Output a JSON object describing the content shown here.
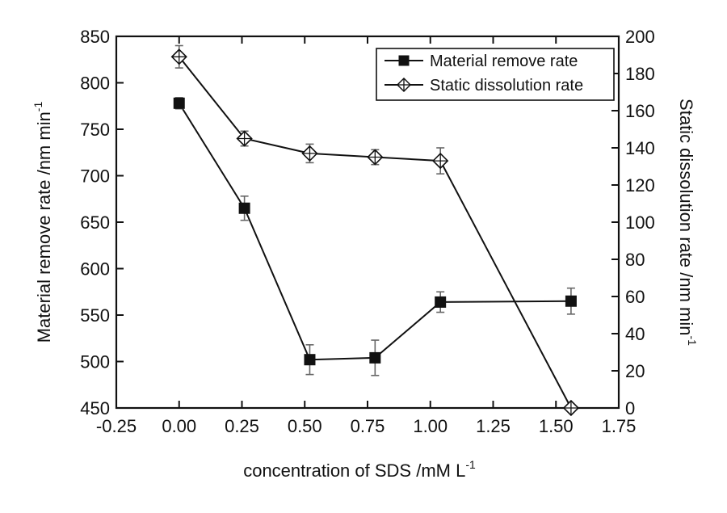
{
  "chart_data": {
    "type": "line",
    "xlabel": "concentration of SDS /mM L",
    "xlabel_sup": "-1",
    "ylabel_left": "Material remove rate /nm min",
    "ylabel_left_sup": "-1",
    "ylabel_right": "Static dissolution rate /nm min",
    "ylabel_right_sup": "-1",
    "xlim": [
      -0.25,
      1.75
    ],
    "ylim_left": [
      450,
      850
    ],
    "ylim_right": [
      0,
      200
    ],
    "x_ticks": [
      "-0.25",
      "0.00",
      "0.25",
      "0.50",
      "0.75",
      "1.00",
      "1.25",
      "1.50",
      "1.75"
    ],
    "y_left_ticks": [
      "450",
      "500",
      "550",
      "600",
      "650",
      "700",
      "750",
      "800",
      "850"
    ],
    "y_right_ticks": [
      "0",
      "20",
      "40",
      "60",
      "80",
      "100",
      "120",
      "140",
      "160",
      "180",
      "200"
    ],
    "grid": false,
    "legend_position": "top-right",
    "series": [
      {
        "name": "Material remove rate",
        "axis": "left",
        "marker": "filled-square",
        "color": "#111111",
        "x": [
          0.0,
          0.26,
          0.52,
          0.78,
          1.04,
          1.56
        ],
        "y": [
          778,
          665,
          502,
          504,
          564,
          565
        ],
        "err": [
          6,
          13,
          16,
          19,
          11,
          14
        ]
      },
      {
        "name": "Static dissolution rate",
        "axis": "right",
        "marker": "open-diamond-cross",
        "color": "#111111",
        "x": [
          0.0,
          0.26,
          0.52,
          0.78,
          1.04,
          1.56
        ],
        "y": [
          189,
          145,
          137,
          135,
          133,
          0
        ],
        "err": [
          6,
          4,
          5,
          4,
          7,
          0
        ]
      }
    ]
  }
}
